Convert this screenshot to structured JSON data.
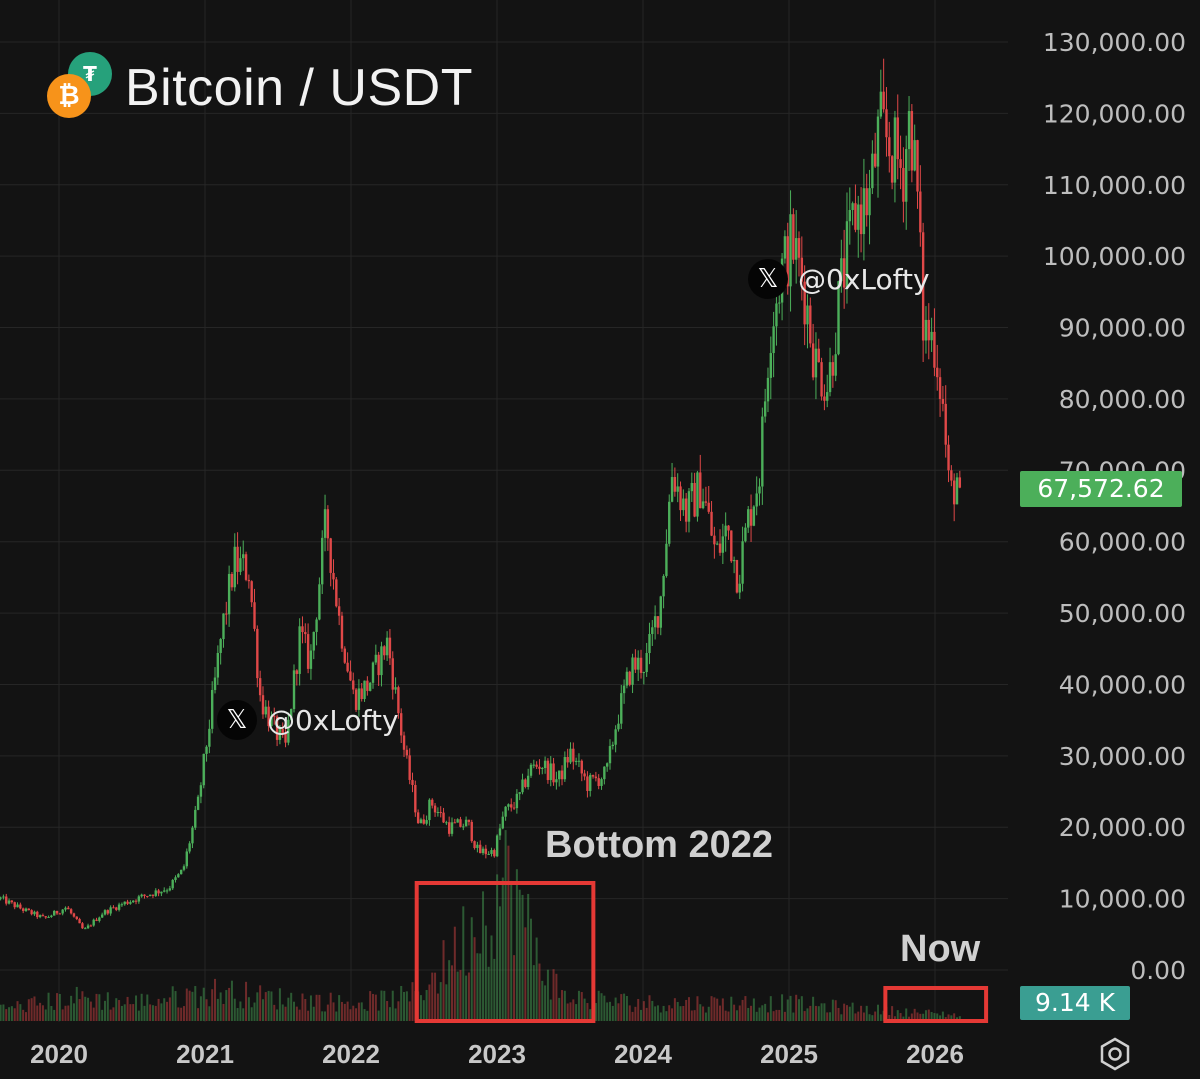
{
  "header": {
    "title": "Bitcoin / USDT",
    "base_icon": "bitcoin-icon",
    "quote_icon": "tether-icon",
    "base_symbol": "₿",
    "quote_symbol": "₮"
  },
  "watermark": {
    "handle": "@0xLofty",
    "icon": "x-logo-icon",
    "glyph": "𝕏"
  },
  "annotations": {
    "bottom_label": "Bottom 2022",
    "now_label": "Now"
  },
  "badges": {
    "last_price": "67,572.62",
    "volume": "9.14 K"
  },
  "colors": {
    "up": "#4caf5a",
    "down": "#e04848",
    "annotation_box": "#e53935",
    "background": "#131313",
    "grid": "#262626",
    "axis_text": "#bdbdbd"
  },
  "chart_data": {
    "type": "candlestick",
    "title": "Bitcoin / USDT",
    "y_axis": {
      "range": [
        0,
        130000
      ],
      "tick_labels": [
        "130,000.00",
        "120,000.00",
        "110,000.00",
        "100,000.00",
        "90,000.00",
        "80,000.00",
        "70,000.00",
        "60,000.00",
        "50,000.00",
        "40,000.00",
        "30,000.00",
        "20,000.00",
        "10,000.00",
        "0.00"
      ],
      "tick_values": [
        130000,
        120000,
        110000,
        100000,
        90000,
        80000,
        70000,
        60000,
        50000,
        40000,
        30000,
        20000,
        10000,
        0
      ]
    },
    "x_axis": {
      "tick_labels": [
        "2020",
        "2021",
        "2022",
        "2023",
        "2024",
        "2025",
        "2026"
      ],
      "tick_values": [
        2020,
        2021,
        2022,
        2023,
        2024,
        2025,
        2026
      ],
      "range": [
        2019.6,
        2026.45
      ]
    },
    "price_path": [
      [
        2019.6,
        10000
      ],
      [
        2019.75,
        8500
      ],
      [
        2019.9,
        7200
      ],
      [
        2020.05,
        8800
      ],
      [
        2020.17,
        5500
      ],
      [
        2020.3,
        8000
      ],
      [
        2020.45,
        9400
      ],
      [
        2020.6,
        10500
      ],
      [
        2020.75,
        11500
      ],
      [
        2020.85,
        14000
      ],
      [
        2020.95,
        23000
      ],
      [
        2021.02,
        33000
      ],
      [
        2021.12,
        48000
      ],
      [
        2021.2,
        57000
      ],
      [
        2021.3,
        56000
      ],
      [
        2021.38,
        38000
      ],
      [
        2021.47,
        34000
      ],
      [
        2021.55,
        31000
      ],
      [
        2021.65,
        47000
      ],
      [
        2021.72,
        43000
      ],
      [
        2021.83,
        63000
      ],
      [
        2021.92,
        49000
      ],
      [
        2022.02,
        38000
      ],
      [
        2022.12,
        40000
      ],
      [
        2022.25,
        46000
      ],
      [
        2022.37,
        30000
      ],
      [
        2022.47,
        20000
      ],
      [
        2022.55,
        23500
      ],
      [
        2022.67,
        20000
      ],
      [
        2022.8,
        20500
      ],
      [
        2022.87,
        16500
      ],
      [
        2022.98,
        16600
      ],
      [
        2023.05,
        22000
      ],
      [
        2023.15,
        24000
      ],
      [
        2023.22,
        28000
      ],
      [
        2023.3,
        29000
      ],
      [
        2023.42,
        26500
      ],
      [
        2023.5,
        30500
      ],
      [
        2023.62,
        26000
      ],
      [
        2023.75,
        27500
      ],
      [
        2023.82,
        35000
      ],
      [
        2023.92,
        42500
      ],
      [
        2024.02,
        43000
      ],
      [
        2024.12,
        52000
      ],
      [
        2024.2,
        70000
      ],
      [
        2024.3,
        64000
      ],
      [
        2024.4,
        68000
      ],
      [
        2024.5,
        58000
      ],
      [
        2024.58,
        62000
      ],
      [
        2024.65,
        55000
      ],
      [
        2024.72,
        63000
      ],
      [
        2024.8,
        70000
      ],
      [
        2024.87,
        90000
      ],
      [
        2024.95,
        98000
      ],
      [
        2025.02,
        102000
      ],
      [
        2025.1,
        96000
      ],
      [
        2025.18,
        85000
      ],
      [
        2025.27,
        82000
      ],
      [
        2025.35,
        95000
      ],
      [
        2025.45,
        106000
      ],
      [
        2025.55,
        108000
      ],
      [
        2025.62,
        118000
      ],
      [
        2025.7,
        115000
      ],
      [
        2025.78,
        112000
      ],
      [
        2025.83,
        120000
      ],
      [
        2025.88,
        108000
      ],
      [
        2025.92,
        90000
      ],
      [
        2026.0,
        88000
      ],
      [
        2026.05,
        80000
      ],
      [
        2026.1,
        66000
      ],
      [
        2026.15,
        69000
      ],
      [
        2026.17,
        67572.62
      ]
    ],
    "volume": {
      "last_label": "9.14 K",
      "profile": [
        [
          2019.6,
          1
        ],
        [
          2020.15,
          2
        ],
        [
          2020.5,
          1.5
        ],
        [
          2021.1,
          2.5
        ],
        [
          2021.4,
          2
        ],
        [
          2022.0,
          1.5
        ],
        [
          2022.4,
          2
        ],
        [
          2022.6,
          4
        ],
        [
          2022.9,
          9
        ],
        [
          2023.1,
          12
        ],
        [
          2023.25,
          6
        ],
        [
          2023.45,
          2
        ],
        [
          2024.0,
          1.5
        ],
        [
          2025.0,
          1.5
        ],
        [
          2025.5,
          1
        ],
        [
          2026.17,
          0.5
        ]
      ]
    },
    "annotations": [
      {
        "text": "Bottom 2022",
        "x_range": [
          2022.45,
          2023.66
        ],
        "kind": "box"
      },
      {
        "text": "Now",
        "x_range": [
          2025.66,
          2026.35
        ],
        "kind": "box"
      }
    ],
    "grid": true,
    "legend": "none"
  }
}
